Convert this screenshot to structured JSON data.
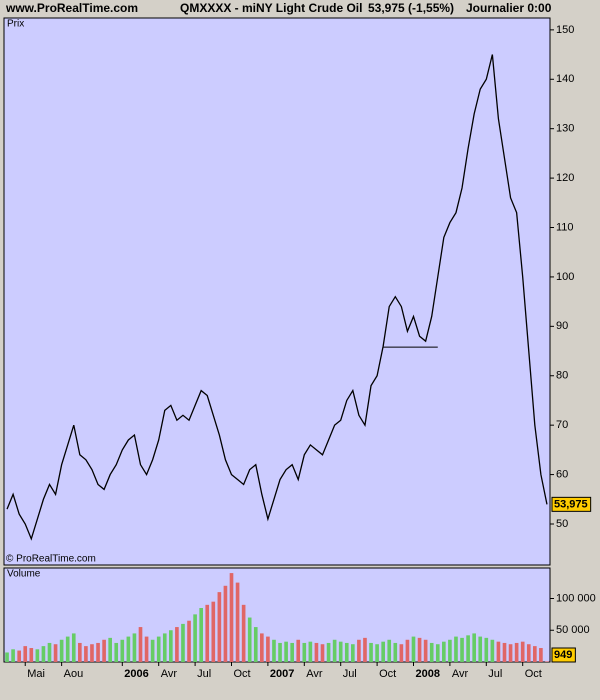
{
  "header": {
    "site": "www.ProRealTime.com",
    "title": "QMXXXX - miNY Light Crude Oil",
    "quote": "53,975 (-1,55%)",
    "period": "Journalier  0:00"
  },
  "chart_data": [
    {
      "type": "line",
      "label": "Prix",
      "credit": "© ProRealTime.com",
      "color": "#000000",
      "background": "#ccccff",
      "values": [
        53,
        56,
        52,
        50,
        47,
        51,
        55,
        58,
        56,
        62,
        66,
        70,
        64,
        63,
        61,
        58,
        57,
        60,
        62,
        65,
        67,
        68,
        62,
        60,
        63,
        67,
        73,
        74,
        71,
        72,
        71,
        74,
        77,
        76,
        72,
        68,
        63,
        60,
        59,
        58,
        61,
        62,
        56,
        51,
        55,
        59,
        61,
        62,
        59,
        64,
        66,
        65,
        64,
        67,
        70,
        71,
        75,
        77,
        72,
        70,
        78,
        80,
        86,
        94,
        96,
        94,
        89,
        92,
        88,
        87,
        92,
        100,
        108,
        111,
        113,
        118,
        126,
        133,
        138,
        140,
        145,
        132,
        124,
        116,
        113,
        100,
        85,
        70,
        60,
        53.975
      ],
      "value_labels": [
        null,
        null,
        null,
        null,
        null,
        null,
        null,
        null,
        null,
        null,
        null,
        null,
        null,
        null,
        null,
        null,
        null,
        null,
        null,
        null,
        null,
        null,
        null,
        null,
        null,
        null,
        null,
        null,
        null,
        null,
        null,
        null,
        null,
        null,
        null,
        null,
        null,
        null,
        null,
        null,
        null,
        null,
        null,
        null,
        null,
        null,
        null,
        null,
        null,
        null,
        null,
        null,
        null,
        null,
        null,
        null,
        null,
        null,
        null,
        null,
        null,
        null,
        null,
        null,
        null,
        null,
        null,
        null,
        null,
        null,
        null,
        null,
        null,
        null,
        null,
        null,
        null,
        null,
        null,
        null,
        null,
        null,
        null,
        null,
        null,
        null,
        null,
        null,
        null,
        "53,975"
      ],
      "level": 85.8,
      "ylim": [
        41.7,
        152.4
      ],
      "yticks": [
        50,
        60,
        70,
        80,
        90,
        100,
        110,
        120,
        130,
        140,
        150
      ]
    },
    {
      "type": "bar",
      "label": "Volume",
      "up_color": "#66cc66",
      "down_color": "#e06666",
      "background": "#ccccff",
      "categories": [
        null,
        null,
        null,
        "Mai",
        null,
        null,
        null,
        null,
        null,
        "Aou",
        null,
        null,
        null,
        null,
        null,
        null,
        null,
        null,
        null,
        "2006",
        null,
        null,
        null,
        null,
        null,
        "Avr",
        null,
        null,
        null,
        null,
        null,
        "Jul",
        null,
        null,
        null,
        null,
        null,
        "Oct",
        null,
        null,
        null,
        null,
        null,
        "2007",
        null,
        null,
        null,
        null,
        null,
        "Avr",
        null,
        null,
        null,
        null,
        null,
        "Jul",
        null,
        null,
        null,
        null,
        null,
        "Oct",
        null,
        null,
        null,
        null,
        null,
        "2008",
        null,
        null,
        null,
        null,
        null,
        "Avr",
        null,
        null,
        null,
        null,
        null,
        "Jul",
        null,
        null,
        null,
        null,
        null,
        "Oct",
        null,
        null,
        null,
        null
      ],
      "values": [
        15000,
        20000,
        18000,
        25000,
        22000,
        20000,
        25000,
        30000,
        28000,
        35000,
        40000,
        45000,
        30000,
        25000,
        28000,
        30000,
        35000,
        38000,
        30000,
        35000,
        40000,
        45000,
        55000,
        40000,
        35000,
        40000,
        45000,
        50000,
        55000,
        60000,
        65000,
        75000,
        85000,
        90000,
        95000,
        110000,
        120000,
        140000,
        125000,
        90000,
        70000,
        55000,
        45000,
        40000,
        35000,
        30000,
        32000,
        30000,
        35000,
        30000,
        32000,
        30000,
        28000,
        30000,
        35000,
        32000,
        30000,
        28000,
        35000,
        38000,
        30000,
        28000,
        32000,
        35000,
        30000,
        28000,
        35000,
        40000,
        38000,
        35000,
        30000,
        28000,
        32000,
        35000,
        40000,
        38000,
        42000,
        45000,
        40000,
        38000,
        35000,
        32000,
        30000,
        28000,
        30000,
        32000,
        28000,
        25000,
        22000,
        949
      ],
      "value_labels": [
        null,
        null,
        null,
        null,
        null,
        null,
        null,
        null,
        null,
        null,
        null,
        null,
        null,
        null,
        null,
        null,
        null,
        null,
        null,
        null,
        null,
        null,
        null,
        null,
        null,
        null,
        null,
        null,
        null,
        null,
        null,
        null,
        null,
        null,
        null,
        null,
        null,
        null,
        null,
        null,
        null,
        null,
        null,
        null,
        null,
        null,
        null,
        null,
        null,
        null,
        null,
        null,
        null,
        null,
        null,
        null,
        null,
        null,
        null,
        null,
        null,
        null,
        null,
        null,
        null,
        null,
        null,
        null,
        null,
        null,
        null,
        null,
        null,
        null,
        null,
        null,
        null,
        null,
        null,
        null,
        null,
        null,
        null,
        null,
        null,
        null,
        null,
        null,
        null,
        "949"
      ],
      "ylim": [
        0,
        148000
      ],
      "yticks": [
        {
          "value": 100000,
          "label": "100 000"
        },
        {
          "value": 50000,
          "label": "50 000"
        }
      ]
    }
  ]
}
